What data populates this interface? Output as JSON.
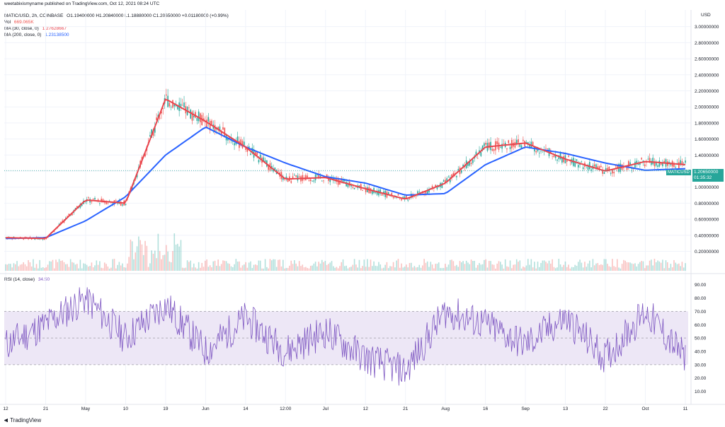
{
  "header": {
    "published_by": "weetabixismyname published on TradingView.com, Oct 12, 2021 08:24 UTC",
    "symbol": "MATIC/USD, 2h, COINBASE",
    "ohlc": "O1.19400000  H1.20840000  L1.18880000  C1.20650000  +0.01180000 (+0.99%)",
    "vol_label": "Vol",
    "vol_value": "669.065K",
    "ma30_label": "MA (30, close, 0)",
    "ma30_value": "1.27628667",
    "ma200_label": "MA (200, close, 0)",
    "ma200_value": "1.23138500"
  },
  "rsi_header": {
    "label": "RSI (14, close)",
    "value": "34.50"
  },
  "price_label": {
    "symbol": "MATICUSD",
    "price": "1.20650000",
    "countdown": "01:35:32"
  },
  "footer": {
    "brand": "TradingView"
  },
  "colors": {
    "ma30": "#e8444d",
    "ma200": "#2962ff",
    "rsi": "#7e57c2",
    "rsi_band": "#ede7f6",
    "up": "#26a69a",
    "down": "#ef5350",
    "label_bg": "#26a69a"
  },
  "chart_data": [
    {
      "type": "line",
      "title": "MATIC/USD, 2h, COINBASE",
      "ylabel": "USD",
      "y_ticks": [
        "3.00000000",
        "2.80000000",
        "2.60000000",
        "2.40000000",
        "2.20000000",
        "2.00000000",
        "1.80000000",
        "1.60000000",
        "1.40000000",
        "1.20000000",
        "1.00000000",
        "0.80000000",
        "0.60000000",
        "0.40000000",
        "0.20000000"
      ],
      "ylim": [
        0.09,
        3.05
      ],
      "x_ticks": [
        "12",
        "21",
        "May",
        "10",
        "19",
        "Jun",
        "14",
        "12:00",
        "Jul",
        "12",
        "21",
        "Aug",
        "16",
        "Sep",
        "13",
        "22",
        "Oct",
        "11"
      ],
      "x": [
        "Apr 12",
        "Apr 21",
        "May 1",
        "May 10",
        "May 19",
        "Jun 1",
        "Jun 14",
        "Jun 22",
        "Jul 1",
        "Jul 12",
        "Jul 21",
        "Aug 1",
        "Aug 16",
        "Sep 1",
        "Sep 13",
        "Sep 22",
        "Oct 1",
        "Oct 11"
      ],
      "series": [
        {
          "name": "MA (30, close, 0)",
          "values": [
            0.37,
            0.36,
            0.84,
            0.8,
            2.1,
            1.82,
            1.5,
            1.1,
            1.12,
            0.98,
            0.85,
            1.05,
            1.5,
            1.55,
            1.35,
            1.2,
            1.32,
            1.28
          ]
        },
        {
          "name": "MA (200, close, 0)",
          "values": [
            0.36,
            0.37,
            0.58,
            0.88,
            1.4,
            1.75,
            1.5,
            1.3,
            1.13,
            1.05,
            0.9,
            0.92,
            1.28,
            1.5,
            1.42,
            1.3,
            1.21,
            1.23
          ]
        }
      ],
      "last_price": 1.2065,
      "grid": true
    },
    {
      "type": "line",
      "title": "RSI (14, close)",
      "y_ticks": [
        "90.00",
        "80.00",
        "70.00",
        "60.00",
        "50.00",
        "40.00",
        "30.00",
        "20.00",
        "10.00"
      ],
      "ylim": [
        5,
        93
      ],
      "band": [
        30,
        70
      ],
      "midline": 50,
      "series": [
        {
          "name": "RSI (14, close)",
          "values": [
            45,
            60,
            80,
            50,
            75,
            40,
            65,
            40,
            55,
            35,
            25,
            70,
            60,
            45,
            65,
            35,
            70,
            34.5
          ]
        }
      ]
    }
  ]
}
